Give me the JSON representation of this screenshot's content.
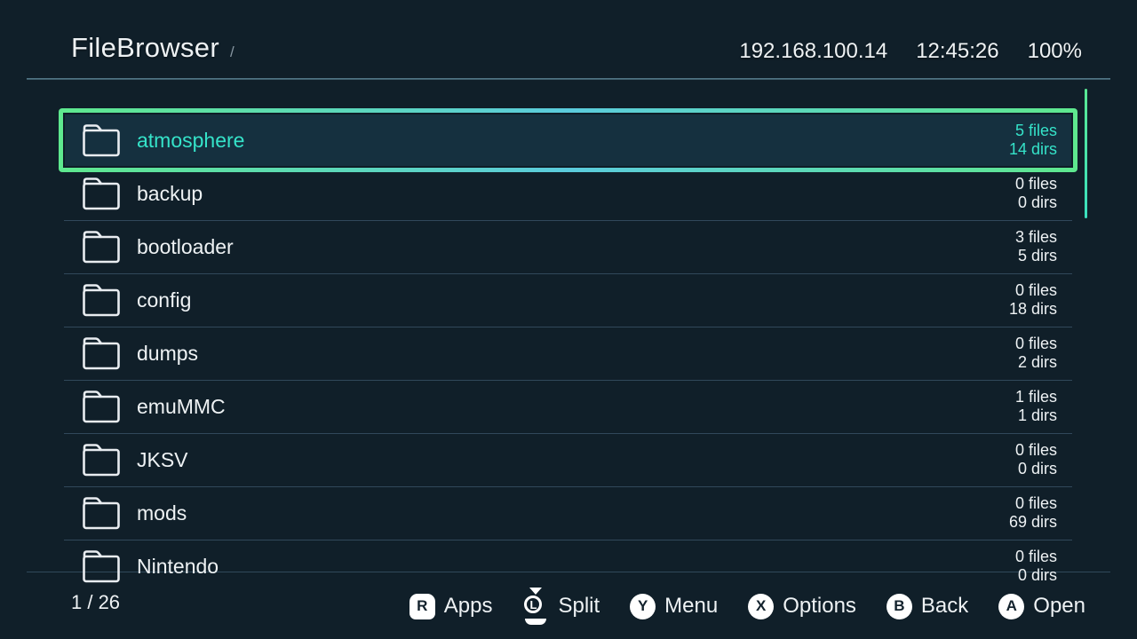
{
  "header": {
    "title": "FileBrowser",
    "path": "/",
    "ip": "192.168.100.14",
    "time": "12:45:26",
    "battery": "100%"
  },
  "list": {
    "items": [
      {
        "name": "atmosphere",
        "files": "5 files",
        "dirs": "14 dirs",
        "selected": true,
        "icon": "folder-icon"
      },
      {
        "name": "backup",
        "files": "0 files",
        "dirs": "0 dirs",
        "selected": false,
        "icon": "folder-icon"
      },
      {
        "name": "bootloader",
        "files": "3 files",
        "dirs": "5 dirs",
        "selected": false,
        "icon": "folder-icon"
      },
      {
        "name": "config",
        "files": "0 files",
        "dirs": "18 dirs",
        "selected": false,
        "icon": "folder-icon"
      },
      {
        "name": "dumps",
        "files": "0 files",
        "dirs": "2 dirs",
        "selected": false,
        "icon": "folder-icon"
      },
      {
        "name": "emuMMC",
        "files": "1 files",
        "dirs": "1 dirs",
        "selected": false,
        "icon": "folder-icon"
      },
      {
        "name": "JKSV",
        "files": "0 files",
        "dirs": "0 dirs",
        "selected": false,
        "icon": "folder-icon"
      },
      {
        "name": "mods",
        "files": "0 files",
        "dirs": "69 dirs",
        "selected": false,
        "icon": "folder-icon"
      },
      {
        "name": "Nintendo",
        "files": "0 files",
        "dirs": "0 dirs",
        "selected": false,
        "icon": "folder-icon"
      }
    ]
  },
  "footer": {
    "page": "1 / 26",
    "hints": [
      {
        "button": "R",
        "type": "shoulder",
        "label": "Apps",
        "icon": "r-shoulder-button-icon"
      },
      {
        "button": "L",
        "type": "stick",
        "label": "Split",
        "icon": "l-stick-press-icon"
      },
      {
        "button": "Y",
        "type": "face",
        "label": "Menu",
        "icon": "y-button-icon"
      },
      {
        "button": "X",
        "type": "face",
        "label": "Options",
        "icon": "x-button-icon"
      },
      {
        "button": "B",
        "type": "face",
        "label": "Back",
        "icon": "b-button-icon"
      },
      {
        "button": "A",
        "type": "face",
        "label": "Open",
        "icon": "a-button-icon"
      }
    ]
  },
  "colors": {
    "background": "#101f29",
    "selected_fill": "#15303f",
    "accent_teal_text": "#35e3c9",
    "selection_border_green": "#5ee88e",
    "selection_border_cyan": "#5bcbdd",
    "scrollbar_green": "#59e893",
    "separator": "#31485a"
  }
}
